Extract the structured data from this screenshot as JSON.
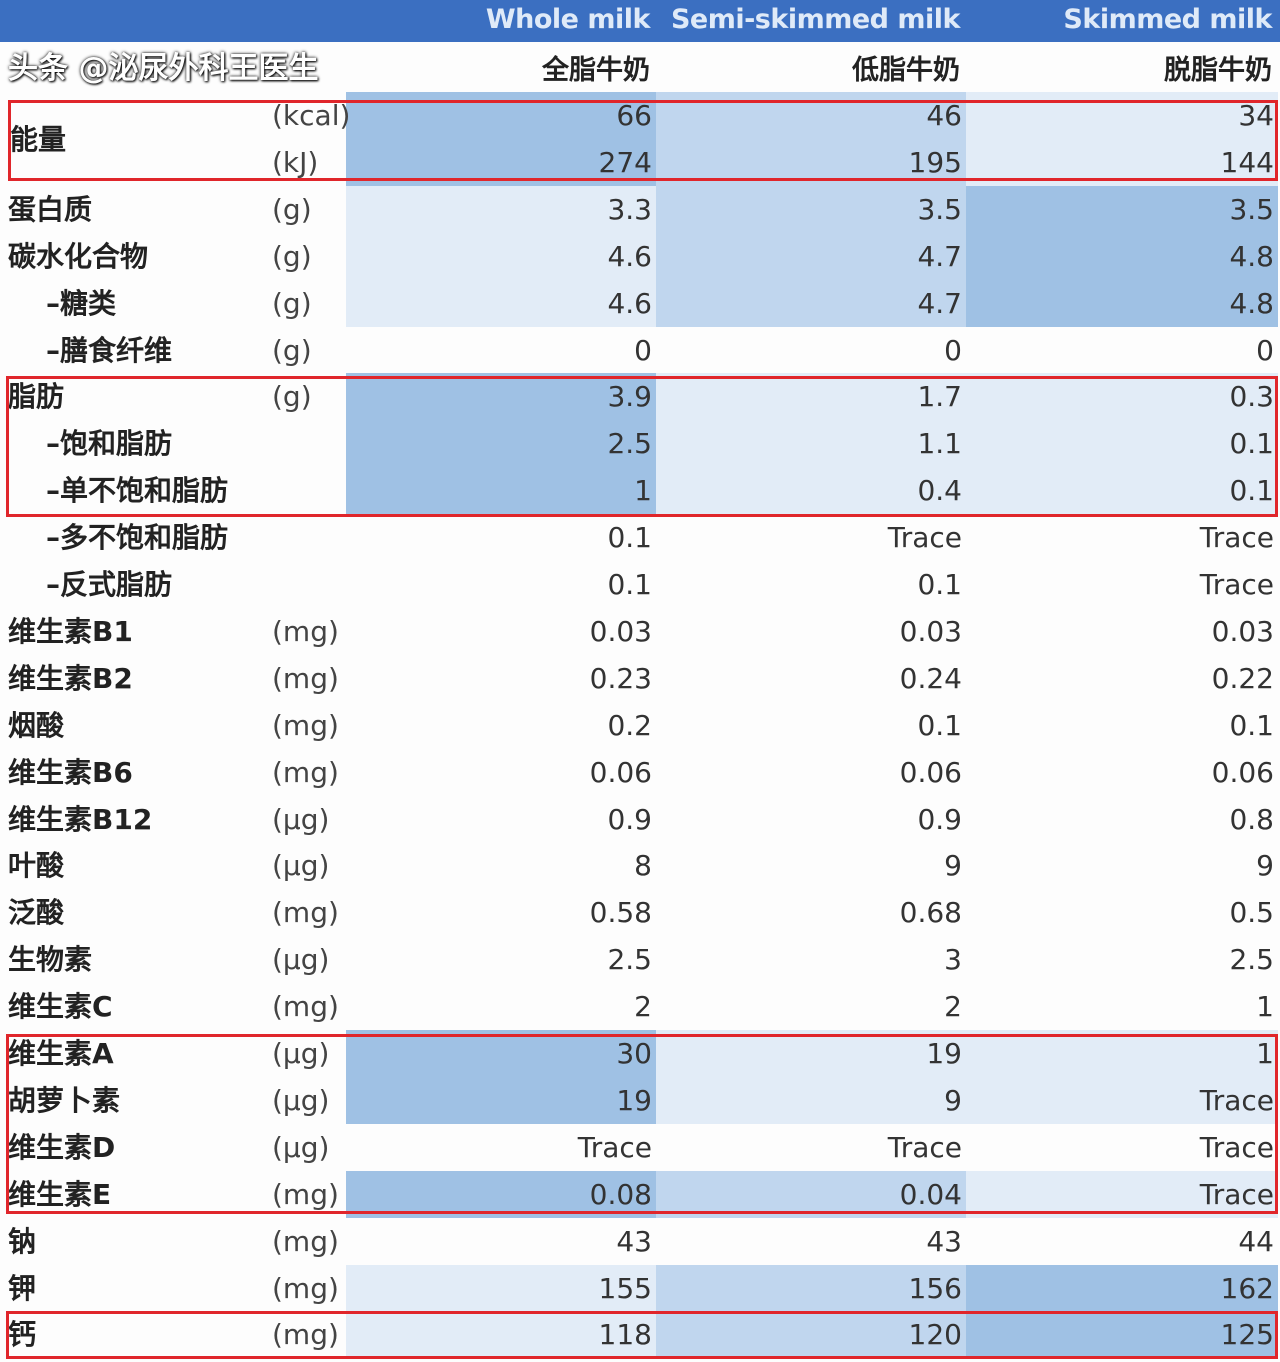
{
  "header": {
    "columns_en": [
      "Whole milk",
      "Semi-skimmed milk",
      "Skimmed milk"
    ],
    "columns_zh": [
      "全脂牛奶",
      "低脂牛奶",
      "脱脂牛奶"
    ]
  },
  "colors": {
    "header_bar": "#3b6fc1",
    "highlight_box": "#e0262b",
    "shade_light": "#e2ecf7",
    "shade_mid": "#c0d6ee",
    "shade_dark": "#9fc1e4"
  },
  "energy_label": "能量",
  "rows": [
    {
      "label": "",
      "unit": "(kcal)",
      "values": [
        "66",
        "46",
        "34"
      ],
      "shade": [
        3,
        2,
        1
      ]
    },
    {
      "label": "",
      "unit": "(kJ)",
      "values": [
        "274",
        "195",
        "144"
      ],
      "shade": [
        3,
        2,
        1
      ]
    },
    {
      "label": "蛋白质",
      "unit": "(g)",
      "values": [
        "3.3",
        "3.5",
        "3.5"
      ],
      "shade": [
        1,
        2,
        3
      ]
    },
    {
      "label": "碳水化合物",
      "unit": "(g)",
      "values": [
        "4.6",
        "4.7",
        "4.8"
      ],
      "shade": [
        1,
        2,
        3
      ]
    },
    {
      "label": "–糖类",
      "unit": "(g)",
      "values": [
        "4.6",
        "4.7",
        "4.8"
      ],
      "shade": [
        1,
        2,
        3
      ],
      "indent": true
    },
    {
      "label": "–膳食纤维",
      "unit": "(g)",
      "values": [
        "0",
        "0",
        "0"
      ],
      "shade": [
        0,
        0,
        0
      ],
      "indent": true
    },
    {
      "label": "脂肪",
      "unit": "(g)",
      "values": [
        "3.9",
        "1.7",
        "0.3"
      ],
      "shade": [
        3,
        1,
        1
      ]
    },
    {
      "label": "–饱和脂肪",
      "unit": "",
      "values": [
        "2.5",
        "1.1",
        "0.1"
      ],
      "shade": [
        3,
        1,
        1
      ],
      "indent": true
    },
    {
      "label": "–单不饱和脂肪",
      "unit": "",
      "values": [
        "1",
        "0.4",
        "0.1"
      ],
      "shade": [
        3,
        1,
        1
      ],
      "indent": true
    },
    {
      "label": "–多不饱和脂肪",
      "unit": "",
      "values": [
        "0.1",
        "Trace",
        "Trace"
      ],
      "shade": [
        0,
        0,
        0
      ],
      "indent": true
    },
    {
      "label": "–反式脂肪",
      "unit": "",
      "values": [
        "0.1",
        "0.1",
        "Trace"
      ],
      "shade": [
        0,
        0,
        0
      ],
      "indent": true
    },
    {
      "label": "维生素B1",
      "unit": "(mg)",
      "values": [
        "0.03",
        "0.03",
        "0.03"
      ],
      "shade": [
        0,
        0,
        0
      ]
    },
    {
      "label": "维生素B2",
      "unit": "(mg)",
      "values": [
        "0.23",
        "0.24",
        "0.22"
      ],
      "shade": [
        0,
        0,
        0
      ]
    },
    {
      "label": "烟酸",
      "unit": "(mg)",
      "values": [
        "0.2",
        "0.1",
        "0.1"
      ],
      "shade": [
        0,
        0,
        0
      ]
    },
    {
      "label": "维生素B6",
      "unit": "(mg)",
      "values": [
        "0.06",
        "0.06",
        "0.06"
      ],
      "shade": [
        0,
        0,
        0
      ]
    },
    {
      "label": "维生素B12",
      "unit": "(µg)",
      "values": [
        "0.9",
        "0.9",
        "0.8"
      ],
      "shade": [
        0,
        0,
        0
      ]
    },
    {
      "label": "叶酸",
      "unit": "(µg)",
      "values": [
        "8",
        "9",
        "9"
      ],
      "shade": [
        0,
        0,
        0
      ]
    },
    {
      "label": "泛酸",
      "unit": "(mg)",
      "values": [
        "0.58",
        "0.68",
        "0.5"
      ],
      "shade": [
        0,
        0,
        0
      ]
    },
    {
      "label": "生物素",
      "unit": "(µg)",
      "values": [
        "2.5",
        "3",
        "2.5"
      ],
      "shade": [
        0,
        0,
        0
      ]
    },
    {
      "label": "维生素C",
      "unit": "(mg)",
      "values": [
        "2",
        "2",
        "1"
      ],
      "shade": [
        0,
        0,
        0
      ]
    },
    {
      "label": "维生素A",
      "unit": "(µg)",
      "values": [
        "30",
        "19",
        "1"
      ],
      "shade": [
        3,
        1,
        1
      ]
    },
    {
      "label": "胡萝卜素",
      "unit": "(µg)",
      "values": [
        "19",
        "9",
        "Trace"
      ],
      "shade": [
        3,
        1,
        1
      ]
    },
    {
      "label": "维生素D",
      "unit": "(µg)",
      "values": [
        "Trace",
        "Trace",
        "Trace"
      ],
      "shade": [
        0,
        0,
        0
      ]
    },
    {
      "label": "维生素E",
      "unit": "(mg)",
      "values": [
        "0.08",
        "0.04",
        "Trace"
      ],
      "shade": [
        3,
        2,
        1
      ]
    },
    {
      "label": "钠",
      "unit": "(mg)",
      "values": [
        "43",
        "43",
        "44"
      ],
      "shade": [
        0,
        0,
        0
      ]
    },
    {
      "label": "钾",
      "unit": "(mg)",
      "values": [
        "155",
        "156",
        "162"
      ],
      "shade": [
        1,
        2,
        3
      ]
    },
    {
      "label": "钙",
      "unit": "(mg)",
      "values": [
        "118",
        "120",
        "125"
      ],
      "shade": [
        1,
        2,
        3
      ]
    }
  ],
  "watermark": "头条 @泌尿外科王医生"
}
